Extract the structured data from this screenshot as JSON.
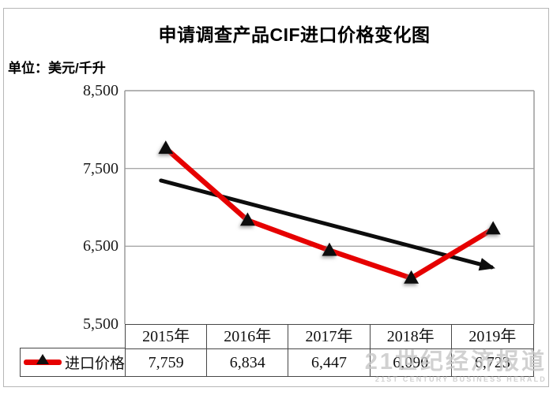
{
  "chart_data": {
    "type": "line",
    "title": "申请调查产品CIF进口价格变化图",
    "unit_label": "单位：美元/千升",
    "categories": [
      "2015年",
      "2016年",
      "2017年",
      "2018年",
      "2019年"
    ],
    "series": [
      {
        "name": "进口价格",
        "values": [
          7759,
          6834,
          6447,
          6090,
          6723
        ],
        "display": [
          "7,759",
          "6,834",
          "6,447",
          "6,090",
          "6,723"
        ],
        "color": "#e60000",
        "marker": "black-triangle"
      }
    ],
    "trendline": {
      "color": "#0d0d0d",
      "start_value": 7345,
      "end_value": 6230,
      "arrow_end": true
    },
    "ylim": [
      5500,
      8500
    ],
    "yticks": [
      8500,
      7500,
      6500,
      5500
    ],
    "ytick_labels": [
      "8,500",
      "7,500",
      "6,500",
      "5,500"
    ],
    "grid": "horizontal",
    "legend_position": "bottom-left-table-row"
  },
  "watermark": {
    "line1": "21世纪经济报道",
    "line2": "21ST CENTURY BUSINESS HERALD"
  },
  "colors": {
    "series_red": "#e60000",
    "trend_black": "#0d0d0d",
    "gridline": "#a8a8a8",
    "plot_border": "#9b9b9b",
    "table_border": "#474747",
    "marker_shadow": "#8a8a8a",
    "watermark_gray": "#c6c6c6",
    "frame_border": "#b7b7b7"
  }
}
